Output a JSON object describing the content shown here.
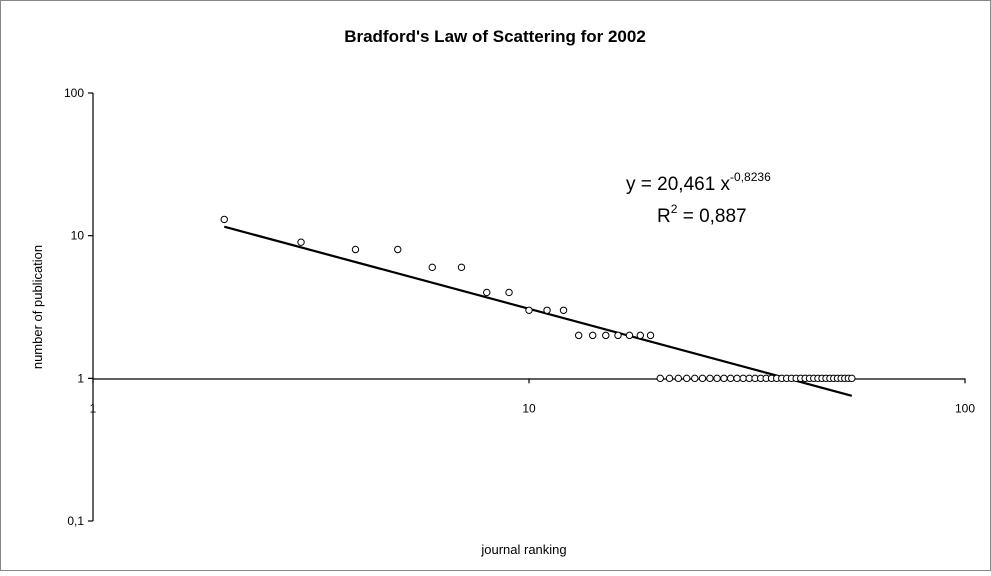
{
  "chart_data": {
    "type": "scatter",
    "title": "Bradford's Law of Scattering for 2002",
    "xlabel": "journal ranking",
    "ylabel": "number of publication",
    "xscale": "log",
    "yscale": "log",
    "xlim": [
      1,
      100
    ],
    "ylim": [
      0.1,
      100
    ],
    "xticks": [
      1,
      10,
      100
    ],
    "xtick_labels": [
      "1",
      "10",
      "100"
    ],
    "yticks": [
      0.1,
      1,
      10,
      100
    ],
    "ytick_labels": [
      "0,1",
      "1",
      "10",
      "100"
    ],
    "grid": false,
    "legend": "none",
    "series": [
      {
        "points": [
          [
            2,
            13
          ],
          [
            3,
            9
          ],
          [
            4,
            8
          ],
          [
            5,
            8
          ],
          [
            6,
            6
          ],
          [
            7,
            6
          ],
          [
            8,
            4
          ],
          [
            9,
            4
          ],
          [
            10,
            3
          ],
          [
            11,
            3
          ],
          [
            12,
            3
          ],
          [
            13,
            2
          ],
          [
            14,
            2
          ],
          [
            15,
            2
          ],
          [
            16,
            2
          ],
          [
            17,
            2
          ],
          [
            18,
            2
          ],
          [
            19,
            2
          ],
          [
            20,
            1
          ],
          [
            21,
            1
          ],
          [
            22,
            1
          ],
          [
            23,
            1
          ],
          [
            24,
            1
          ],
          [
            25,
            1
          ],
          [
            26,
            1
          ],
          [
            27,
            1
          ],
          [
            28,
            1
          ],
          [
            29,
            1
          ],
          [
            30,
            1
          ],
          [
            31,
            1
          ],
          [
            32,
            1
          ],
          [
            33,
            1
          ],
          [
            34,
            1
          ],
          [
            35,
            1
          ],
          [
            36,
            1
          ],
          [
            37,
            1
          ],
          [
            38,
            1
          ],
          [
            39,
            1
          ],
          [
            40,
            1
          ],
          [
            41,
            1
          ],
          [
            42,
            1
          ],
          [
            43,
            1
          ],
          [
            44,
            1
          ],
          [
            45,
            1
          ],
          [
            46,
            1
          ],
          [
            47,
            1
          ],
          [
            48,
            1
          ],
          [
            49,
            1
          ],
          [
            50,
            1
          ],
          [
            51,
            1
          ],
          [
            52,
            1
          ],
          [
            53,
            1
          ],
          [
            54,
            1
          ],
          [
            55,
            1
          ]
        ]
      }
    ],
    "trendline": {
      "type": "power",
      "coefficient": 20.461,
      "exponent": -0.8236,
      "x_range": [
        2,
        55
      ],
      "equation_prefix": "y = 20,461 x",
      "equation_exponent": "-0,8236",
      "r2_prefix": "R",
      "r2_exponent": "2",
      "r2_suffix": " = 0,887"
    }
  }
}
